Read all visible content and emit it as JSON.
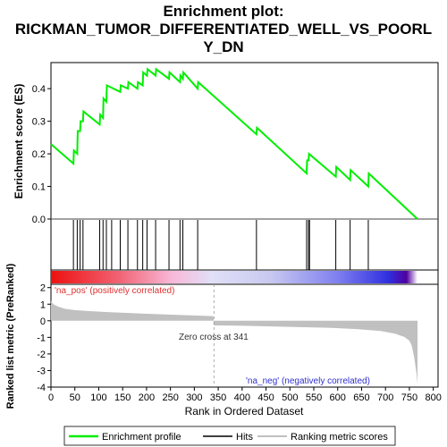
{
  "chart_data": {
    "type": "line",
    "title_lines": [
      "Enrichment plot:",
      "RICKMAN_TUMOR_DIFFERENTIATED_WELL_VS_POORL",
      "Y_DN"
    ],
    "top_panel": {
      "ylabel": "Enrichment score (ES)",
      "ylim": [
        0,
        0.48
      ],
      "yticks": [
        "0.0",
        "0.1",
        "0.2",
        "0.3",
        "0.4"
      ],
      "ytick_values": [
        0.0,
        0.1,
        0.2,
        0.3,
        0.4
      ],
      "series_color": "#00ee00",
      "es_points": [
        [
          0,
          0.23
        ],
        [
          47,
          0.17
        ],
        [
          48,
          0.21
        ],
        [
          55,
          0.2
        ],
        [
          56,
          0.27
        ],
        [
          61,
          0.27
        ],
        [
          62,
          0.3
        ],
        [
          67,
          0.3
        ],
        [
          68,
          0.33
        ],
        [
          102,
          0.29
        ],
        [
          103,
          0.32
        ],
        [
          109,
          0.31
        ],
        [
          110,
          0.37
        ],
        [
          116,
          0.36
        ],
        [
          117,
          0.41
        ],
        [
          145,
          0.39
        ],
        [
          146,
          0.41
        ],
        [
          161,
          0.4
        ],
        [
          162,
          0.42
        ],
        [
          181,
          0.4
        ],
        [
          182,
          0.42
        ],
        [
          192,
          0.41
        ],
        [
          193,
          0.45
        ],
        [
          201,
          0.44
        ],
        [
          202,
          0.46
        ],
        [
          219,
          0.44
        ],
        [
          220,
          0.46
        ],
        [
          247,
          0.43
        ],
        [
          248,
          0.45
        ],
        [
          270,
          0.42
        ],
        [
          271,
          0.44
        ],
        [
          276,
          0.43
        ],
        [
          277,
          0.45
        ],
        [
          307,
          0.4
        ],
        [
          308,
          0.42
        ],
        [
          430,
          0.26
        ],
        [
          431,
          0.28
        ],
        [
          535,
          0.14
        ],
        [
          536,
          0.18
        ],
        [
          539,
          0.18
        ],
        [
          540,
          0.2
        ],
        [
          596,
          0.13
        ],
        [
          597,
          0.16
        ],
        [
          626,
          0.12
        ],
        [
          627,
          0.15
        ],
        [
          664,
          0.1
        ],
        [
          665,
          0.14
        ],
        [
          767,
          0.0
        ]
      ]
    },
    "hits": [
      47,
      55,
      61,
      67,
      102,
      109,
      116,
      127,
      145,
      161,
      181,
      192,
      201,
      219,
      247,
      270,
      276,
      307,
      430,
      535,
      539,
      541,
      596,
      626,
      664
    ],
    "bottom_panel": {
      "ylabel": "Ranked list metric (PreRanked)",
      "ylim": [
        -4,
        2.2
      ],
      "yticks": [
        "2",
        "1",
        "0",
        "-1",
        "-2",
        "-3",
        "-4"
      ],
      "ytick_values": [
        2,
        1,
        0,
        -1,
        -2,
        -3,
        -4
      ],
      "fill_color": "#c0c0c0",
      "zero_cross": 341,
      "metric_curve": [
        [
          0,
          1.2
        ],
        [
          5,
          1.0
        ],
        [
          15,
          0.85
        ],
        [
          30,
          0.72
        ],
        [
          50,
          0.64
        ],
        [
          80,
          0.58
        ],
        [
          120,
          0.52
        ],
        [
          180,
          0.45
        ],
        [
          240,
          0.38
        ],
        [
          300,
          0.32
        ],
        [
          340,
          0.28
        ],
        [
          341,
          -0.28
        ],
        [
          400,
          -0.3
        ],
        [
          460,
          -0.34
        ],
        [
          520,
          -0.38
        ],
        [
          580,
          -0.42
        ],
        [
          640,
          -0.5
        ],
        [
          690,
          -0.62
        ],
        [
          720,
          -0.78
        ],
        [
          740,
          -0.98
        ],
        [
          750,
          -1.2
        ],
        [
          755,
          -1.5
        ],
        [
          760,
          -2.2
        ],
        [
          765,
          -3.2
        ],
        [
          767,
          -3.8
        ]
      ]
    },
    "annotations": {
      "pos": "'na_pos' (positively correlated)",
      "neg": "'na_neg' (negatively correlated)",
      "zero": "Zero cross at 341"
    },
    "xlabel": "Rank in Ordered Dataset",
    "xlim": [
      0,
      810
    ],
    "xticks": [
      "0",
      "50",
      "100",
      "150",
      "200",
      "250",
      "300",
      "350",
      "400",
      "450",
      "500",
      "550",
      "600",
      "650",
      "700",
      "750",
      "800"
    ],
    "xtick_values": [
      0,
      50,
      100,
      150,
      200,
      250,
      300,
      350,
      400,
      450,
      500,
      550,
      600,
      650,
      700,
      750,
      800
    ],
    "n_genes": 767,
    "legend": [
      "Enrichment profile",
      "Hits",
      "Ranking metric scores"
    ]
  }
}
